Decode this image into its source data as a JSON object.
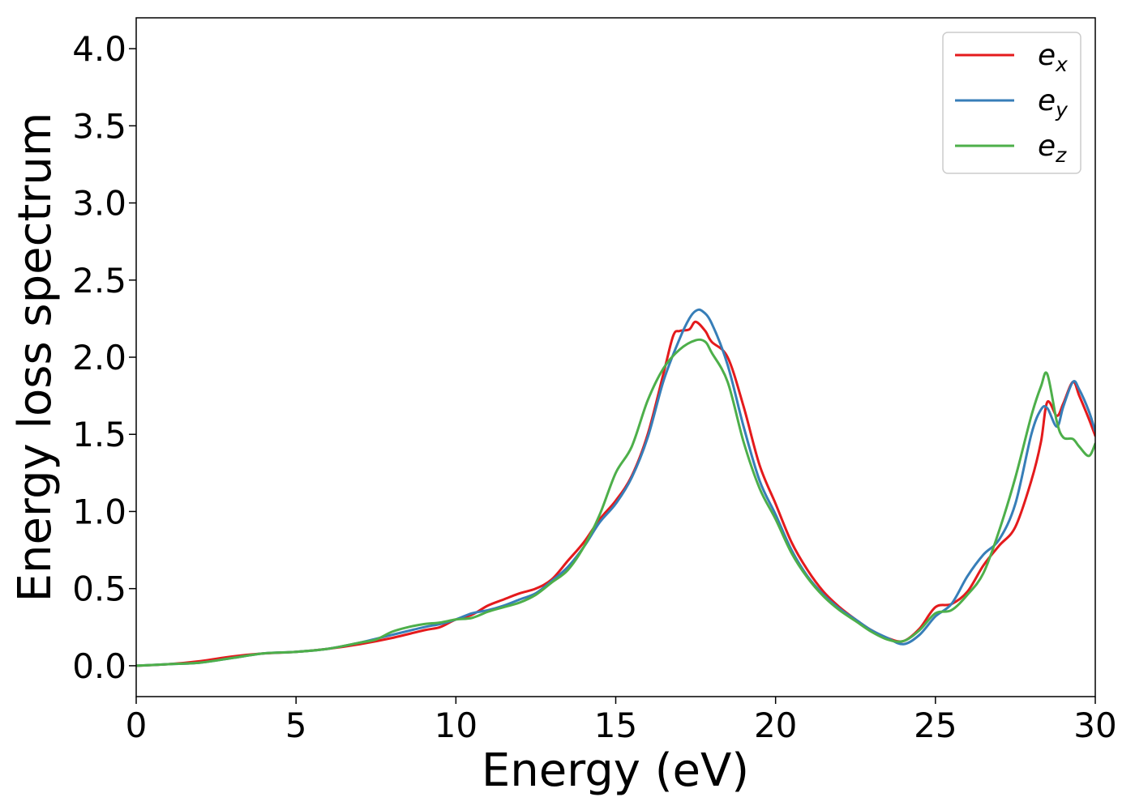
{
  "chart_data": {
    "type": "line",
    "xlabel": "Energy (eV)",
    "ylabel": "Energy loss spectrum",
    "xlim": [
      0,
      30
    ],
    "ylim": [
      -0.2,
      4.2
    ],
    "xticks": [
      0,
      5,
      10,
      15,
      20,
      25,
      30
    ],
    "xtick_labels": [
      "0",
      "5",
      "10",
      "15",
      "20",
      "25",
      "30"
    ],
    "yticks": [
      0.0,
      0.5,
      1.0,
      1.5,
      2.0,
      2.5,
      3.0,
      3.5,
      4.0
    ],
    "ytick_labels": [
      "0.0",
      "0.5",
      "1.0",
      "1.5",
      "2.0",
      "2.5",
      "3.0",
      "3.5",
      "4.0"
    ],
    "grid": false,
    "legend_position": "top-right",
    "series": [
      {
        "name": "e_x",
        "base": "e",
        "sub": "x",
        "color": "#e41a1c",
        "x": [
          0,
          1,
          2,
          3,
          4,
          5,
          6,
          7,
          8,
          9,
          9.5,
          10,
          10.5,
          11,
          11.5,
          12,
          12.5,
          13,
          13.5,
          14,
          14.5,
          15,
          15.5,
          16,
          16.5,
          16.8,
          17,
          17.3,
          17.5,
          17.8,
          18,
          18.5,
          19,
          19.5,
          20,
          20.5,
          21,
          21.5,
          22,
          22.5,
          23,
          23.5,
          24,
          24.5,
          25,
          25.5,
          26,
          26.5,
          27,
          27.5,
          28,
          28.3,
          28.5,
          28.8,
          29,
          29.3,
          29.5,
          29.8,
          30
        ],
        "y": [
          0.0,
          0.01,
          0.03,
          0.06,
          0.08,
          0.09,
          0.11,
          0.14,
          0.18,
          0.23,
          0.25,
          0.3,
          0.33,
          0.39,
          0.43,
          0.47,
          0.5,
          0.56,
          0.68,
          0.8,
          0.95,
          1.07,
          1.23,
          1.5,
          1.9,
          2.14,
          2.17,
          2.18,
          2.23,
          2.17,
          2.1,
          2.0,
          1.68,
          1.3,
          1.05,
          0.8,
          0.62,
          0.48,
          0.38,
          0.3,
          0.23,
          0.18,
          0.16,
          0.24,
          0.38,
          0.4,
          0.48,
          0.65,
          0.78,
          0.9,
          1.2,
          1.45,
          1.71,
          1.62,
          1.7,
          1.84,
          1.75,
          1.6,
          1.49
        ]
      },
      {
        "name": "e_y",
        "base": "e",
        "sub": "y",
        "color": "#377eb8",
        "x": [
          0,
          1,
          2,
          3,
          4,
          5,
          6,
          7,
          8,
          9,
          9.5,
          10,
          10.5,
          11,
          11.5,
          12,
          12.5,
          13,
          13.5,
          14,
          14.5,
          15,
          15.5,
          16,
          16.5,
          17,
          17.3,
          17.5,
          17.7,
          18,
          18.5,
          19,
          19.5,
          20,
          20.5,
          21,
          21.5,
          22,
          22.5,
          23,
          23.5,
          24,
          24.5,
          25,
          25.5,
          26,
          26.5,
          27,
          27.5,
          28,
          28.3,
          28.5,
          28.8,
          29,
          29.3,
          29.5,
          29.8,
          30
        ],
        "y": [
          0.0,
          0.01,
          0.02,
          0.05,
          0.08,
          0.09,
          0.11,
          0.15,
          0.2,
          0.25,
          0.27,
          0.3,
          0.34,
          0.36,
          0.39,
          0.43,
          0.47,
          0.55,
          0.64,
          0.77,
          0.93,
          1.05,
          1.22,
          1.48,
          1.85,
          2.12,
          2.25,
          2.3,
          2.3,
          2.22,
          1.95,
          1.55,
          1.2,
          0.98,
          0.75,
          0.58,
          0.46,
          0.37,
          0.3,
          0.23,
          0.18,
          0.14,
          0.2,
          0.32,
          0.4,
          0.58,
          0.72,
          0.82,
          1.05,
          1.5,
          1.66,
          1.67,
          1.55,
          1.68,
          1.84,
          1.79,
          1.65,
          1.52
        ]
      },
      {
        "name": "e_z",
        "base": "e",
        "sub": "z",
        "color": "#4daf4a",
        "x": [
          0,
          1,
          2,
          3,
          4,
          5,
          6,
          7,
          7.5,
          8,
          8.5,
          9,
          9.5,
          10,
          10.5,
          11,
          11.5,
          12,
          12.5,
          13,
          13.5,
          14,
          14.5,
          15,
          15.5,
          16,
          16.5,
          17,
          17.5,
          17.8,
          18,
          18.5,
          19,
          19.5,
          20,
          20.5,
          21,
          21.5,
          22,
          22.5,
          23,
          23.5,
          24,
          24.5,
          25,
          25.5,
          26,
          26.5,
          27,
          27.5,
          28,
          28.3,
          28.5,
          28.8,
          29,
          29.3,
          29.5,
          29.8,
          30
        ],
        "y": [
          0.0,
          0.01,
          0.02,
          0.05,
          0.08,
          0.09,
          0.11,
          0.15,
          0.17,
          0.22,
          0.25,
          0.27,
          0.28,
          0.3,
          0.31,
          0.35,
          0.38,
          0.41,
          0.46,
          0.54,
          0.62,
          0.77,
          0.98,
          1.25,
          1.42,
          1.72,
          1.93,
          2.05,
          2.11,
          2.1,
          2.03,
          1.84,
          1.45,
          1.15,
          0.95,
          0.73,
          0.57,
          0.45,
          0.36,
          0.29,
          0.22,
          0.17,
          0.16,
          0.23,
          0.34,
          0.36,
          0.46,
          0.6,
          0.88,
          1.22,
          1.62,
          1.81,
          1.89,
          1.58,
          1.48,
          1.47,
          1.42,
          1.36,
          1.44
        ]
      }
    ]
  }
}
